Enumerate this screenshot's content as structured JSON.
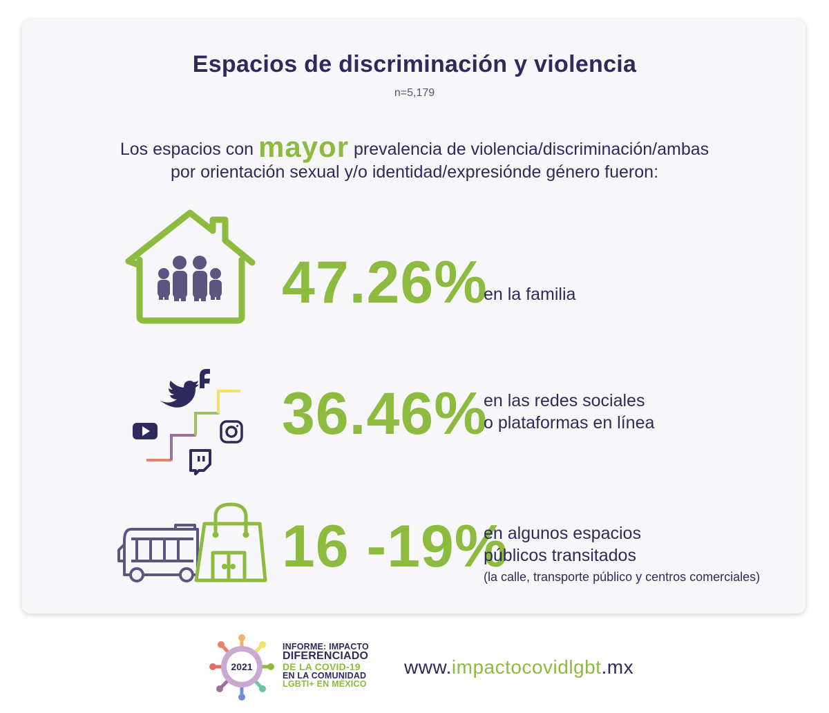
{
  "title": "Espacios de discriminación y violencia",
  "sample_size": "n=5,179",
  "intro": {
    "before": "Los espacios con ",
    "highlight": "mayor",
    "after": " prevalencia de violencia/discriminación/ambas",
    "line2": "por orientación sexual y/o identidad/expresiónde género fueron:"
  },
  "stats": [
    {
      "value": "47.26%",
      "label_line1": "en la familia",
      "icon": "house-family-icon",
      "progress_percent": 47.26
    },
    {
      "value": "36.46%",
      "label_line1": "en las redes sociales",
      "label_line2": "o plataformas en línea",
      "icon": "social-media-icons",
      "progress_percent": 36.46
    },
    {
      "value": "16 -19%",
      "label_line1": "en algunos espacios",
      "label_line2": "públicos transitados",
      "note": "(la calle, transporte público y centros comerciales)",
      "icon": "bus-shopping-bag-icon"
    }
  ],
  "footer": {
    "logo": {
      "year": "2021",
      "line1": "INFORME: IMPACTO",
      "line2": "DIFERENCIADO",
      "line3": "DE LA COVID-19",
      "line4": "EN LA COMUNIDAD",
      "line5": "LGBTI+ EN MÉXICO"
    },
    "url_prefix": "www.",
    "url_highlight": "impactocovidlgbt",
    "url_suffix": ".mx"
  },
  "colors": {
    "accent_green": "#8dbb3f",
    "text_navy": "#2e2a5c",
    "card_background": "#f7f7f9"
  }
}
